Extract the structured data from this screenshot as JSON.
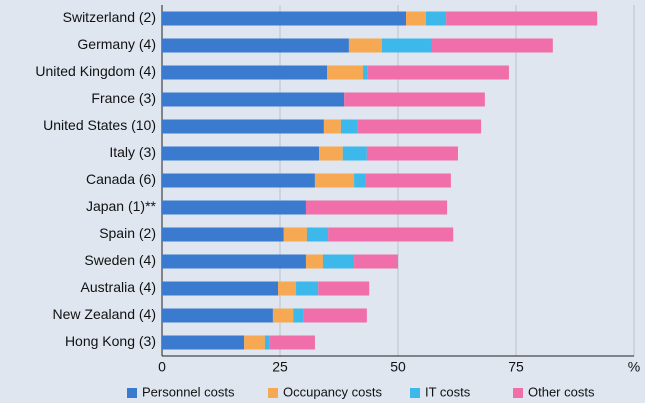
{
  "chart_data": {
    "type": "stacked-bar-horizontal",
    "categories": [
      "Switzerland (2)",
      "Germany (4)",
      "United Kingdom (4)",
      "France (3)",
      "United States (10)",
      "Italy (3)",
      "Canada (6)",
      "Japan (1)**",
      "Spain (2)",
      "Sweden (4)",
      "Australia (4)",
      "New Zealand (4)",
      "Hong Kong (3)"
    ],
    "series": [
      {
        "name": "Personnel costs",
        "color": "#3a7bd0",
        "values": [
          51.7,
          39.6,
          35.0,
          38.6,
          34.3,
          33.3,
          32.4,
          30.5,
          25.8,
          30.5,
          24.6,
          23.5,
          17.4
        ]
      },
      {
        "name": "Occupancy costs",
        "color": "#f7a852",
        "values": [
          4.2,
          7.0,
          7.6,
          0,
          3.6,
          5.0,
          8.3,
          0,
          4.9,
          3.6,
          3.8,
          4.3,
          4.4
        ]
      },
      {
        "name": "IT costs",
        "color": "#3cb9ea",
        "values": [
          4.3,
          10.6,
          1.0,
          0,
          3.6,
          5.1,
          2.5,
          0,
          4.5,
          6.6,
          4.7,
          2.1,
          0.9
        ]
      },
      {
        "name": "Other costs",
        "color": "#f06ea9",
        "values": [
          32.0,
          25.6,
          29.9,
          29.8,
          26.1,
          19.3,
          18.0,
          29.9,
          26.5,
          9.3,
          10.8,
          13.5,
          9.7
        ]
      }
    ],
    "xlim": [
      0,
      100
    ],
    "xticks": [
      0,
      25,
      50,
      75,
      {
        "value": 100,
        "label": "%"
      }
    ],
    "grid": true
  }
}
